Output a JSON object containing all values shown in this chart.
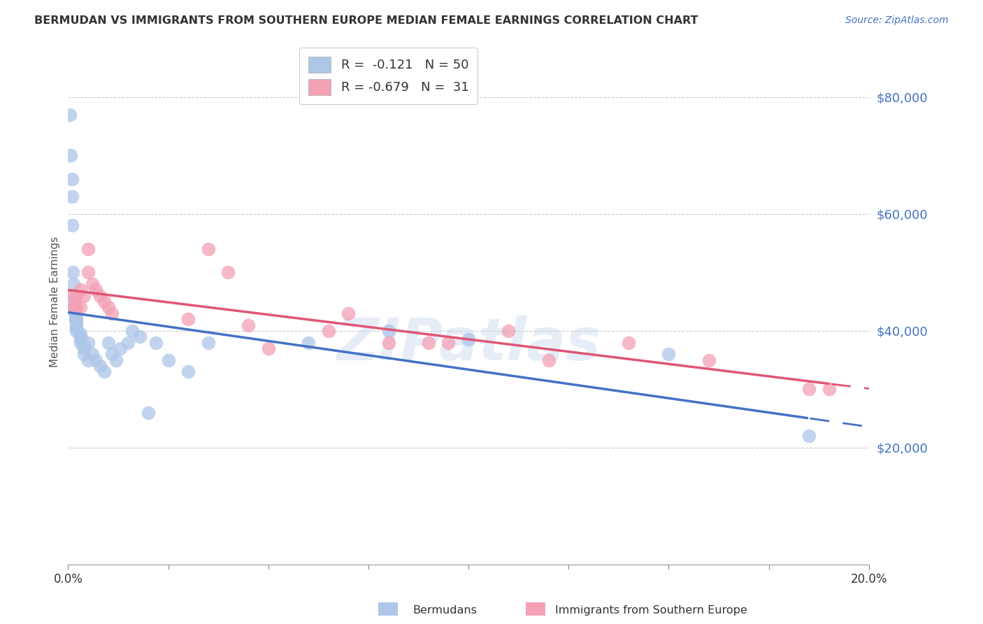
{
  "title": "BERMUDAN VS IMMIGRANTS FROM SOUTHERN EUROPE MEDIAN FEMALE EARNINGS CORRELATION CHART",
  "source": "Source: ZipAtlas.com",
  "ylabel": "Median Female Earnings",
  "right_yticks": [
    "$80,000",
    "$60,000",
    "$40,000",
    "$20,000"
  ],
  "right_ytick_vals": [
    80000,
    60000,
    40000,
    20000
  ],
  "legend_blue_r": "R =  -0.121",
  "legend_blue_n": "N = 50",
  "legend_pink_r": "R = -0.679",
  "legend_pink_n": "N =  31",
  "blue_color": "#aec6e8",
  "pink_color": "#f4a0b5",
  "blue_line_color": "#4472c4",
  "pink_line_color": "#e05575",
  "label_blue": "Bermudans",
  "label_pink": "Immigrants from Southern Europe",
  "watermark": "ZIPatlas",
  "blue_points_x": [
    0.0005,
    0.0007,
    0.0009,
    0.001,
    0.001,
    0.0012,
    0.0013,
    0.0014,
    0.0015,
    0.0015,
    0.0016,
    0.0017,
    0.0018,
    0.0018,
    0.0019,
    0.002,
    0.002,
    0.002,
    0.002,
    0.002,
    0.003,
    0.003,
    0.003,
    0.003,
    0.004,
    0.004,
    0.004,
    0.005,
    0.005,
    0.006,
    0.007,
    0.008,
    0.009,
    0.01,
    0.011,
    0.012,
    0.013,
    0.015,
    0.016,
    0.018,
    0.02,
    0.022,
    0.025,
    0.03,
    0.035,
    0.06,
    0.08,
    0.1,
    0.15,
    0.185
  ],
  "blue_points_y": [
    77000,
    70000,
    66000,
    63000,
    58000,
    50000,
    48000,
    46000,
    45000,
    44000,
    44000,
    43000,
    43000,
    42000,
    42000,
    42000,
    41500,
    41000,
    40500,
    40000,
    39500,
    39000,
    38500,
    38000,
    37500,
    37000,
    36000,
    38000,
    35000,
    36000,
    35000,
    34000,
    33000,
    38000,
    36000,
    35000,
    37000,
    38000,
    40000,
    39000,
    26000,
    38000,
    35000,
    33000,
    38000,
    38000,
    40000,
    38500,
    36000,
    22000
  ],
  "pink_points_x": [
    0.001,
    0.0015,
    0.002,
    0.002,
    0.003,
    0.003,
    0.004,
    0.005,
    0.005,
    0.006,
    0.007,
    0.008,
    0.009,
    0.01,
    0.011,
    0.03,
    0.035,
    0.04,
    0.045,
    0.05,
    0.065,
    0.07,
    0.08,
    0.09,
    0.095,
    0.11,
    0.12,
    0.14,
    0.16,
    0.185,
    0.19
  ],
  "pink_points_y": [
    46000,
    44000,
    46000,
    44000,
    47000,
    44000,
    46000,
    54000,
    50000,
    48000,
    47000,
    46000,
    45000,
    44000,
    43000,
    42000,
    54000,
    50000,
    41000,
    37000,
    40000,
    43000,
    38000,
    38000,
    38000,
    40000,
    35000,
    38000,
    35000,
    30000,
    30000
  ],
  "xlim": [
    0.0,
    0.2
  ],
  "ylim": [
    0,
    90000
  ],
  "figsize": [
    14.06,
    8.92
  ],
  "dpi": 100
}
